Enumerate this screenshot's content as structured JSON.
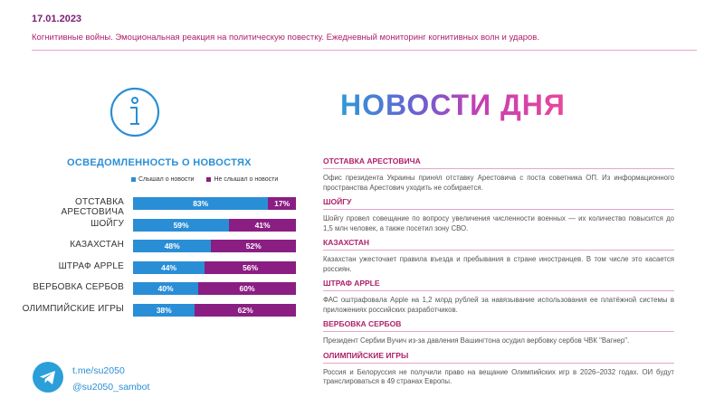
{
  "header": {
    "date": "17.01.2023",
    "subtitle": "Когнитивные войны. Эмоциональная реакция на политическую повестку. Ежедневный мониторинг когнитивных волн и ударов."
  },
  "big_title": "НОВОСТИ ДНЯ",
  "chart_title": "ОСВЕДОМЛЕННОСТЬ О НОВОСТЯХ",
  "legend": {
    "heard": "Слышал о новости",
    "not_heard": "Не слышал о новости"
  },
  "colors": {
    "heard": "#2a8ed6",
    "not_heard": "#8a1e82",
    "accent": "#b0206a"
  },
  "chart_data": {
    "type": "bar",
    "stacked": true,
    "orientation": "horizontal",
    "categories": [
      "ОТСТАВКА АРЕСТОВИЧА",
      "ШОЙГУ",
      "КАЗАХСТАН",
      "ШТРАФ APPLE",
      "ВЕРБОВКА СЕРБОВ",
      "ОЛИМПИЙСКИЕ ИГРЫ"
    ],
    "series": [
      {
        "name": "Слышал о новости",
        "values": [
          83,
          59,
          48,
          44,
          40,
          38
        ]
      },
      {
        "name": "Не слышал о новости",
        "values": [
          17,
          41,
          52,
          56,
          60,
          62
        ]
      }
    ],
    "labels": [
      [
        "83%",
        "17%"
      ],
      [
        "59%",
        "41%"
      ],
      [
        "48%",
        "52%"
      ],
      [
        "44%",
        "56%"
      ],
      [
        "40%",
        "60%"
      ],
      [
        "38%",
        "62%"
      ]
    ]
  },
  "news": [
    {
      "head": "ОТСТАВКА АРЕСТОВИЧА",
      "text": "Офис президента Украины принял отставку Арестовича с поста советника ОП. Из информационного пространства Арестович уходить не собирается."
    },
    {
      "head": "ШОЙГУ",
      "text": "Шойгу провел совещание по вопросу увеличения численности военных — их количество повысится до 1,5 млн человек, а также посетил зону СВО."
    },
    {
      "head": "КАЗАХСТАН",
      "text": "Казахстан ужесточает правила въезда и пребывания в стране иностранцев. В том числе это касается россиян."
    },
    {
      "head": "ШТРАФ APPLE",
      "text": "ФАС оштрафовала Apple на 1,2 млрд рублей за навязывание использования ее платёжной системы в приложениях российских разработчиков."
    },
    {
      "head": "ВЕРБОВКА СЕРБОВ",
      "text": "Президент Сербии Вучич из-за давления Вашингтона осудил вербовку сербов ЧВК \"Вагнер\"."
    },
    {
      "head": "ОЛИМПИЙСКИЕ ИГРЫ",
      "text": "Россия и Белоруссия не получили право на вещание Олимпийских игр в 2026–2032 годах. ОИ будут транслироваться в 49 странах Европы."
    }
  ],
  "footer": {
    "link": "t.me/su2050",
    "handle": "@su2050_sambot",
    "icon": "telegram-icon"
  }
}
